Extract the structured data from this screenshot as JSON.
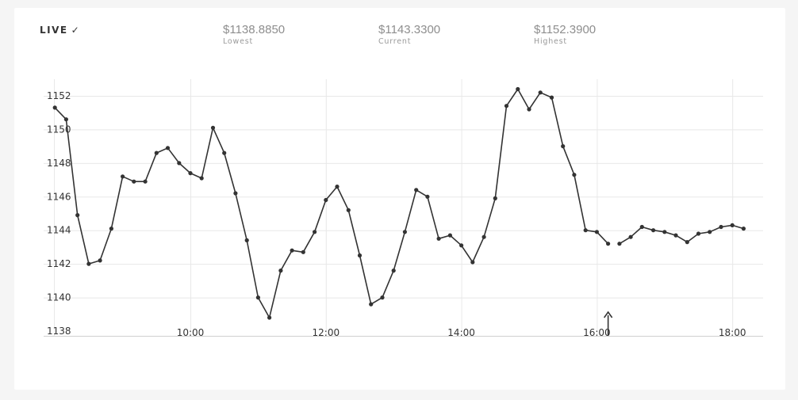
{
  "header": {
    "live_label": "LIVE",
    "live_check": "✓",
    "stats": [
      {
        "value": "$1138.8850",
        "label": "Lowest"
      },
      {
        "value": "$1143.3300",
        "label": "Current"
      },
      {
        "value": "$1152.3900",
        "label": "Highest"
      }
    ]
  },
  "colors": {
    "line": "#333333",
    "grid": "#e8e8e8",
    "axis": "#d0d0d0",
    "text": "#333333",
    "muted": "#8e8e8e"
  },
  "icons": {
    "marker": "up-arrow-icon"
  },
  "chart_data": {
    "type": "line",
    "title": "",
    "xlabel": "",
    "ylabel": "",
    "ylim": [
      1138,
      1153
    ],
    "xlim": [
      "08:00",
      "18:20"
    ],
    "grid": true,
    "x_ticks": [
      "10:00",
      "12:00",
      "14:00",
      "16:00",
      "18:00"
    ],
    "y_ticks": [
      1138,
      1140,
      1142,
      1144,
      1146,
      1148,
      1150,
      1152
    ],
    "marker_time": "16:10",
    "series": [
      {
        "name": "",
        "points": [
          [
            "08:00",
            1151.3
          ],
          [
            "08:10",
            1150.6
          ],
          [
            "08:20",
            1144.9
          ],
          [
            "08:30",
            1142.0
          ],
          [
            "08:40",
            1142.2
          ],
          [
            "08:50",
            1144.1
          ],
          [
            "09:00",
            1147.2
          ],
          [
            "09:10",
            1146.9
          ],
          [
            "09:20",
            1146.9
          ],
          [
            "09:30",
            1148.6
          ],
          [
            "09:40",
            1148.9
          ],
          [
            "09:50",
            1148.0
          ],
          [
            "10:00",
            1147.4
          ],
          [
            "10:10",
            1147.1
          ],
          [
            "10:20",
            1150.1
          ],
          [
            "10:30",
            1148.6
          ],
          [
            "10:40",
            1146.2
          ],
          [
            "10:50",
            1143.4
          ],
          [
            "11:00",
            1140.0
          ],
          [
            "11:10",
            1138.8
          ],
          [
            "11:20",
            1141.6
          ],
          [
            "11:30",
            1142.8
          ],
          [
            "11:40",
            1142.7
          ],
          [
            "11:50",
            1143.9
          ],
          [
            "12:00",
            1145.8
          ],
          [
            "12:10",
            1146.6
          ],
          [
            "12:20",
            1145.2
          ],
          [
            "12:30",
            1142.5
          ],
          [
            "12:40",
            1139.6
          ],
          [
            "12:50",
            1140.0
          ],
          [
            "13:00",
            1141.6
          ],
          [
            "13:10",
            1143.9
          ],
          [
            "13:20",
            1146.4
          ],
          [
            "13:30",
            1146.0
          ],
          [
            "13:40",
            1143.5
          ],
          [
            "13:50",
            1143.7
          ],
          [
            "14:00",
            1143.1
          ],
          [
            "14:10",
            1142.1
          ],
          [
            "14:20",
            1143.6
          ],
          [
            "14:30",
            1145.9
          ],
          [
            "14:40",
            1151.4
          ],
          [
            "14:50",
            1152.4
          ],
          [
            "15:00",
            1151.2
          ],
          [
            "15:10",
            1152.2
          ],
          [
            "15:20",
            1151.9
          ],
          [
            "15:30",
            1149.0
          ],
          [
            "15:40",
            1147.3
          ],
          [
            "15:50",
            1144.0
          ],
          [
            "16:00",
            1143.9
          ],
          [
            "16:10",
            1143.2
          ]
        ]
      },
      {
        "name": "",
        "points": [
          [
            "16:20",
            1143.2
          ],
          [
            "16:30",
            1143.6
          ],
          [
            "16:40",
            1144.2
          ],
          [
            "16:50",
            1144.0
          ],
          [
            "17:00",
            1143.9
          ],
          [
            "17:10",
            1143.7
          ],
          [
            "17:20",
            1143.3
          ],
          [
            "17:30",
            1143.8
          ],
          [
            "17:40",
            1143.9
          ],
          [
            "17:50",
            1144.2
          ],
          [
            "18:00",
            1144.3
          ],
          [
            "18:10",
            1144.1
          ]
        ]
      }
    ]
  }
}
